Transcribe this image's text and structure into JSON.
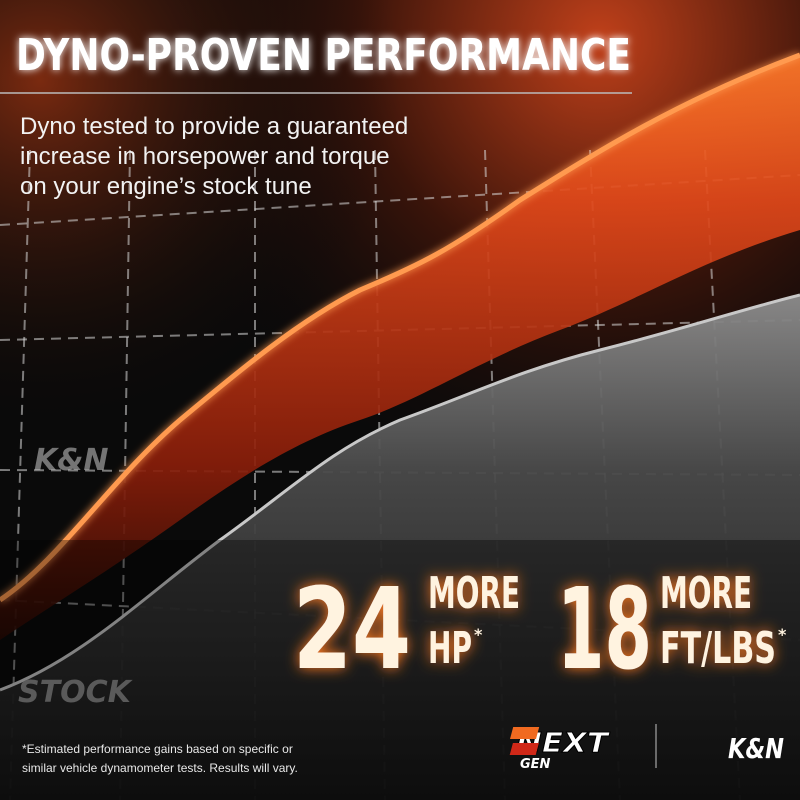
{
  "header": {
    "title": "DYNO-PROVEN PERFORMANCE",
    "subtitle_lines": [
      "Dyno tested to provide a guaranteed",
      "increase in horsepower and torque",
      "on your engine’s stock tune"
    ]
  },
  "graphic": {
    "watermark_logo": "K&N",
    "stock_label": "STOCK"
  },
  "stats": [
    {
      "number": "24",
      "word": "MORE",
      "unit": "HP",
      "note_mark": "*"
    },
    {
      "number": "18",
      "word": "MORE",
      "unit": "FT/LBS",
      "note_mark": "*"
    }
  ],
  "footer": {
    "disclaimer_lines": [
      "*Estimated performance gains based on specific or",
      "similar vehicle dynamometer tests. Results will vary."
    ],
    "nextgen_logo": {
      "top": "NEXT",
      "bottom": "GEN"
    },
    "brand_logo": "K&N"
  }
}
